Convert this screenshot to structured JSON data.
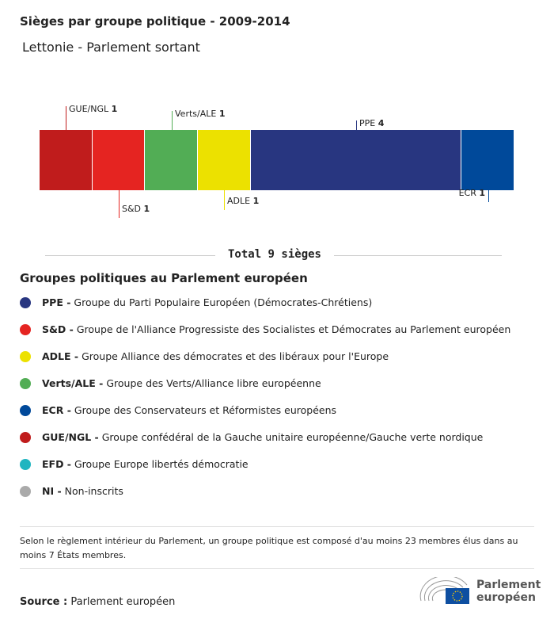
{
  "title": "Sièges par groupe politique - 2009-2014",
  "subtitle": "Lettonie - Parlement sortant",
  "chart_data": {
    "type": "bar",
    "orientation": "stacked-horizontal",
    "categories": [
      "GUE/NGL",
      "S&D",
      "Verts/ALE",
      "ADLE",
      "PPE",
      "ECR"
    ],
    "values": [
      1,
      1,
      1,
      1,
      4,
      1
    ],
    "colors": [
      "#c01c1c",
      "#e52421",
      "#52ad55",
      "#ece100",
      "#283680",
      "#00499a"
    ],
    "total_label": "Total 9 sièges"
  },
  "legend": {
    "title": "Groupes politiques au Parlement européen",
    "items": [
      {
        "abbr": "PPE -",
        "name": "Groupe du Parti Populaire Européen (Démocrates-Chrétiens)",
        "color": "#283680"
      },
      {
        "abbr": "S&D -",
        "name": "Groupe de l'Alliance Progressiste des Socialistes et Démocrates au Parlement européen",
        "color": "#e52421"
      },
      {
        "abbr": "ADLE -",
        "name": "Groupe Alliance des démocrates et des libéraux pour l'Europe",
        "color": "#ece100"
      },
      {
        "abbr": "Verts/ALE -",
        "name": "Groupe des Verts/Alliance libre européenne",
        "color": "#52ad55"
      },
      {
        "abbr": "ECR -",
        "name": "Groupe des Conservateurs et Réformistes européens",
        "color": "#00499a"
      },
      {
        "abbr": "GUE/NGL -",
        "name": "Groupe confédéral de la Gauche unitaire européenne/Gauche verte nordique",
        "color": "#c01c1c"
      },
      {
        "abbr": "EFD -",
        "name": "Groupe Europe libertés démocratie",
        "color": "#1fb5c0"
      },
      {
        "abbr": "NI -",
        "name": "Non-inscrits",
        "color": "#aaaaaa"
      }
    ]
  },
  "note": "Selon le règlement intérieur du Parlement, un groupe politique est composé d'au moins 23 membres élus dans au moins 7 États membres.",
  "source": {
    "label": "Source :",
    "value": "Parlement européen"
  },
  "logo": {
    "line1": "Parlement",
    "line2": "européen"
  }
}
